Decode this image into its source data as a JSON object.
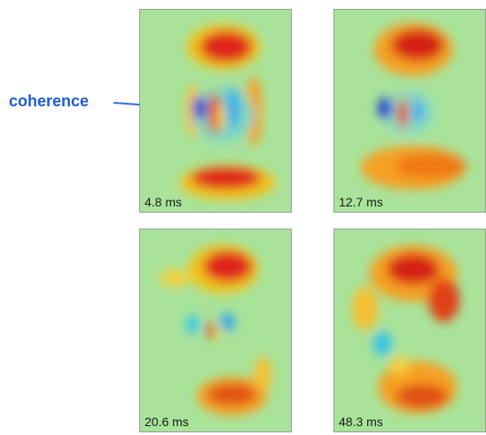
{
  "annotation": {
    "text": "coherence",
    "color": "#1f5bd6"
  },
  "panels": [
    {
      "time": "4.8 ms"
    },
    {
      "time": "12.7 ms"
    },
    {
      "time": "20.6 ms"
    },
    {
      "time": "48.3 ms"
    }
  ],
  "colormap": {
    "background": "#a9e39a",
    "low": "#0a1fcc",
    "mid_low": "#25c7e6",
    "mid_high": "#f5e04a",
    "high": "#d61616"
  }
}
